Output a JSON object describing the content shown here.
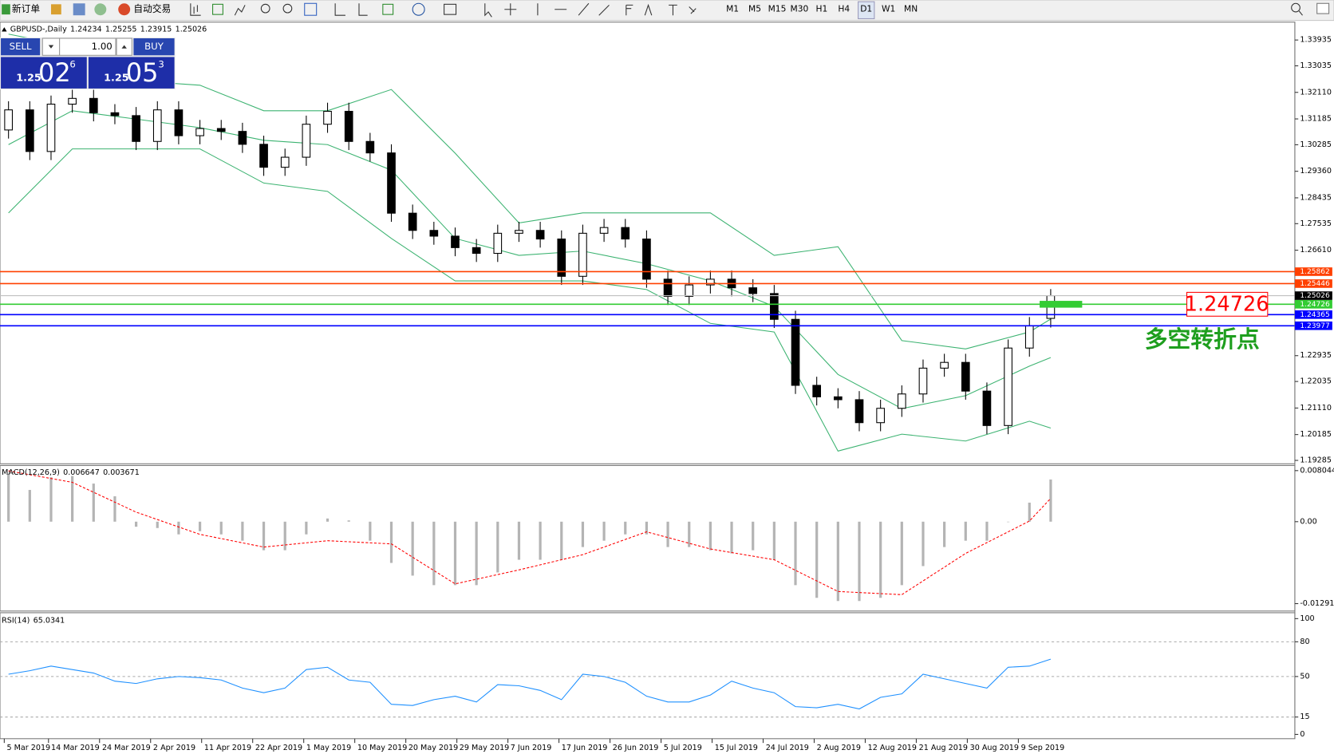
{
  "toolbar": {
    "new_order": "新订单",
    "auto_trading": "自动交易",
    "timeframes": [
      "M1",
      "M5",
      "M15",
      "M30",
      "H1",
      "H4",
      "D1",
      "W1",
      "MN"
    ],
    "active_timeframe": "D1"
  },
  "trade_panel": {
    "sell_label": "SELL",
    "buy_label": "BUY",
    "lots": "1.00",
    "sell": {
      "prefix": "1.25",
      "big": "02",
      "sup": "6"
    },
    "buy": {
      "prefix": "1.25",
      "big": "05",
      "sup": "3"
    }
  },
  "chart_data": [
    {
      "type": "candlestick",
      "title": "GBPUSD-,Daily",
      "xlim": [
        -0.4,
        60.48
      ],
      "ylim": [
        1.19166,
        1.34558
      ],
      "open": [
        1.308,
        1.315,
        1.3005,
        1.317,
        1.319,
        1.314,
        1.313,
        1.304,
        1.315,
        1.306,
        1.3085,
        1.3075,
        1.303,
        1.295,
        1.2985,
        1.31,
        1.3145,
        1.304,
        1.3,
        1.279,
        1.273,
        1.271,
        1.267,
        1.265,
        1.272,
        1.273,
        1.27,
        1.257,
        1.272,
        1.274,
        1.27,
        1.256,
        1.25,
        1.254,
        1.256,
        1.253,
        1.251,
        1.242,
        1.219,
        1.215,
        1.214,
        1.206,
        1.211,
        1.216,
        1.225,
        1.227,
        1.217,
        1.205,
        1.232,
        1.24234
      ],
      "high": [
        1.318,
        1.318,
        1.32,
        1.322,
        1.322,
        1.317,
        1.316,
        1.318,
        1.318,
        1.3115,
        1.3115,
        1.3105,
        1.306,
        1.3015,
        1.313,
        1.3175,
        1.3175,
        1.307,
        1.303,
        1.282,
        1.276,
        1.274,
        1.27,
        1.275,
        1.276,
        1.276,
        1.273,
        1.275,
        1.277,
        1.277,
        1.273,
        1.259,
        1.257,
        1.259,
        1.259,
        1.256,
        1.254,
        1.245,
        1.222,
        1.218,
        1.217,
        1.214,
        1.219,
        1.228,
        1.23,
        1.23,
        1.22,
        1.235,
        1.2428,
        1.25255
      ],
      "low": [
        1.305,
        1.2975,
        1.2975,
        1.314,
        1.311,
        1.31,
        1.301,
        1.301,
        1.303,
        1.303,
        1.3045,
        1.3,
        1.292,
        1.292,
        1.2955,
        1.307,
        1.301,
        1.297,
        1.276,
        1.27,
        1.268,
        1.264,
        1.262,
        1.262,
        1.269,
        1.267,
        1.254,
        1.254,
        1.269,
        1.267,
        1.253,
        1.247,
        1.247,
        1.251,
        1.25,
        1.248,
        1.239,
        1.216,
        1.212,
        1.211,
        1.203,
        1.203,
        1.208,
        1.213,
        1.222,
        1.214,
        1.202,
        1.202,
        1.229,
        1.23915
      ],
      "close": [
        1.315,
        1.3005,
        1.317,
        1.319,
        1.314,
        1.313,
        1.304,
        1.315,
        1.306,
        1.3085,
        1.3075,
        1.303,
        1.295,
        1.2985,
        1.31,
        1.3145,
        1.304,
        1.3,
        1.279,
        1.273,
        1.271,
        1.267,
        1.265,
        1.272,
        1.273,
        1.27,
        1.257,
        1.272,
        1.274,
        1.27,
        1.256,
        1.25,
        1.254,
        1.256,
        1.253,
        1.251,
        1.242,
        1.219,
        1.215,
        1.214,
        1.206,
        1.211,
        1.216,
        1.225,
        1.227,
        1.217,
        1.205,
        1.232,
        1.2398,
        1.25026
      ],
      "color_up": "#ffffff",
      "color_down": "#000000",
      "series": [
        {
          "color": "#3cb371",
          "x": [
            0,
            3,
            6,
            9,
            12,
            15,
            18,
            21,
            24,
            27,
            30,
            33,
            36,
            39,
            42,
            45,
            48,
            49
          ],
          "values": [
            1.3414,
            1.337,
            1.3251,
            1.3236,
            1.3147,
            1.3147,
            1.3221,
            1.2999,
            1.2756,
            1.2791,
            1.2791,
            1.2791,
            1.2643,
            1.2673,
            1.2346,
            1.2317,
            1.2376,
            1.2421
          ]
        },
        {
          "color": "#3cb371",
          "x": [
            0,
            3,
            6,
            9,
            12,
            15,
            18,
            21,
            24,
            27,
            30,
            33,
            36,
            39,
            42,
            45,
            48,
            49
          ],
          "values": [
            1.3029,
            1.3147,
            1.3118,
            1.3088,
            1.3044,
            1.3029,
            1.294,
            1.2702,
            1.2643,
            1.2658,
            1.2614,
            1.2554,
            1.2465,
            1.2228,
            1.2109,
            1.2154,
            1.2257,
            1.2287
          ]
        },
        {
          "color": "#3cb371",
          "x": [
            0,
            3,
            6,
            9,
            12,
            15,
            18,
            21,
            24,
            27,
            30,
            33,
            36,
            39,
            42,
            45,
            48,
            49
          ],
          "values": [
            1.2791,
            1.3014,
            1.3014,
            1.3014,
            1.2895,
            1.2866,
            1.2702,
            1.2554,
            1.2554,
            1.2554,
            1.2524,
            1.2406,
            1.2376,
            1.1961,
            1.202,
            1.1996,
            1.2065,
            1.2041
          ]
        }
      ],
      "yticks": [
        1.33935,
        1.33035,
        {
          "value": 1.3211,
          "label": "1.32110"
        },
        1.31185,
        1.30285,
        {
          "value": 1.2936,
          "label": "1.29360"
        },
        1.28435,
        1.27535,
        {
          "value": 1.2661,
          "label": "1.26610"
        },
        1.22935,
        1.22035,
        {
          "value": 1.2111,
          "label": "1.21110"
        },
        1.20185,
        1.19285
      ],
      "xticks": [
        {
          "value": -0.2,
          "label": "5 Mar 2019"
        },
        {
          "value": 1.88,
          "label": "14 Mar 2019"
        },
        {
          "value": 4.28,
          "label": "24 Mar 2019"
        },
        {
          "value": 6.68,
          "label": "2 Apr 2019"
        },
        {
          "value": 9.08,
          "label": "11 Apr 2019"
        },
        {
          "value": 11.48,
          "label": "22 Apr 2019"
        },
        {
          "value": 13.88,
          "label": "1 May 2019"
        },
        {
          "value": 16.28,
          "label": "10 May 2019"
        },
        {
          "value": 18.68,
          "label": "20 May 2019"
        },
        {
          "value": 21.08,
          "label": "29 May 2019"
        },
        {
          "value": 23.48,
          "label": "7 Jun 2019"
        },
        {
          "value": 25.88,
          "label": "17 Jun 2019"
        },
        {
          "value": 28.28,
          "label": "26 Jun 2019"
        },
        {
          "value": 30.68,
          "label": "5 Jul 2019"
        },
        {
          "value": 33.08,
          "label": "15 Jul 2019"
        },
        {
          "value": 35.48,
          "label": "24 Jul 2019"
        },
        {
          "value": 37.88,
          "label": "2 Aug 2019"
        },
        {
          "value": 40.28,
          "label": "12 Aug 2019"
        },
        {
          "value": 42.68,
          "label": "21 Aug 2019"
        },
        {
          "value": 45.08,
          "label": "30 Aug 2019"
        },
        {
          "value": 47.48,
          "label": "9 Sep 2019"
        }
      ],
      "levels": [
        {
          "value": 1.25862,
          "color": "#ff4000"
        },
        {
          "value": 1.25446,
          "color": "#ff4000"
        },
        {
          "value": 1.24726,
          "color": "#33cc33"
        },
        {
          "value": 1.24365,
          "color": "#0000ff"
        },
        {
          "value": 1.23977,
          "color": "#0000ff"
        }
      ],
      "annotation": "多空转折点",
      "annotation_color": "#1e9e1e"
    },
    {
      "type": "macd",
      "title": "MACD(12,26,9)",
      "ylim": [
        -0.01408,
        0.00885
      ],
      "values": [
        0.0075,
        0.005,
        0.007,
        0.0072,
        0.006,
        0.004,
        -0.0008,
        -0.001,
        -0.002,
        -0.0015,
        -0.002,
        -0.003,
        -0.0045,
        -0.0045,
        -0.002,
        0.0005,
        0.0002,
        -0.003,
        -0.0065,
        -0.0085,
        -0.01,
        -0.01,
        -0.01,
        -0.008,
        -0.006,
        -0.006,
        -0.006,
        -0.004,
        -0.003,
        -0.002,
        -0.002,
        -0.004,
        -0.004,
        -0.0045,
        -0.005,
        -0.0045,
        -0.006,
        -0.01,
        -0.012,
        -0.0125,
        -0.0125,
        -0.012,
        -0.01,
        -0.007,
        -0.004,
        -0.003,
        -0.003,
        0.0,
        0.003,
        0.006647
      ],
      "color": "#b4b4b4",
      "signal": {
        "color": "#ff0000",
        "x": [
          0,
          3,
          6,
          9,
          12,
          15,
          18,
          21,
          24,
          27,
          30,
          33,
          36,
          39,
          42,
          45,
          48,
          49
        ],
        "values": [
          0.008,
          0.0062,
          0.0015,
          -0.002,
          -0.004,
          -0.003,
          -0.0035,
          -0.0098,
          -0.0076,
          -0.0052,
          -0.0016,
          -0.0043,
          -0.006,
          -0.011,
          -0.0115,
          -0.005,
          0.0001,
          0.003671
        ]
      },
      "yticks": [
        0.008044,
        {
          "value": 0,
          "label": "0.00"
        },
        -0.012914
      ]
    },
    {
      "type": "line",
      "title": "RSI(14)",
      "ylim": [
        -3.7,
        105.1
      ],
      "values": [
        52,
        55,
        59,
        56,
        53,
        46,
        44,
        48,
        50,
        49,
        47,
        40,
        36,
        40,
        56,
        58,
        47,
        45,
        26,
        25,
        30,
        33,
        28,
        43,
        42,
        38,
        30,
        52,
        50,
        45,
        33,
        28,
        28,
        34,
        46,
        40,
        36,
        24,
        23,
        26,
        22,
        32,
        35,
        52,
        48,
        44,
        40,
        58,
        59,
        65.0341
      ],
      "color": "#1e90ff",
      "yticks": [
        100,
        80,
        50,
        15,
        0
      ],
      "levels": [
        80,
        50,
        15
      ]
    }
  ]
}
